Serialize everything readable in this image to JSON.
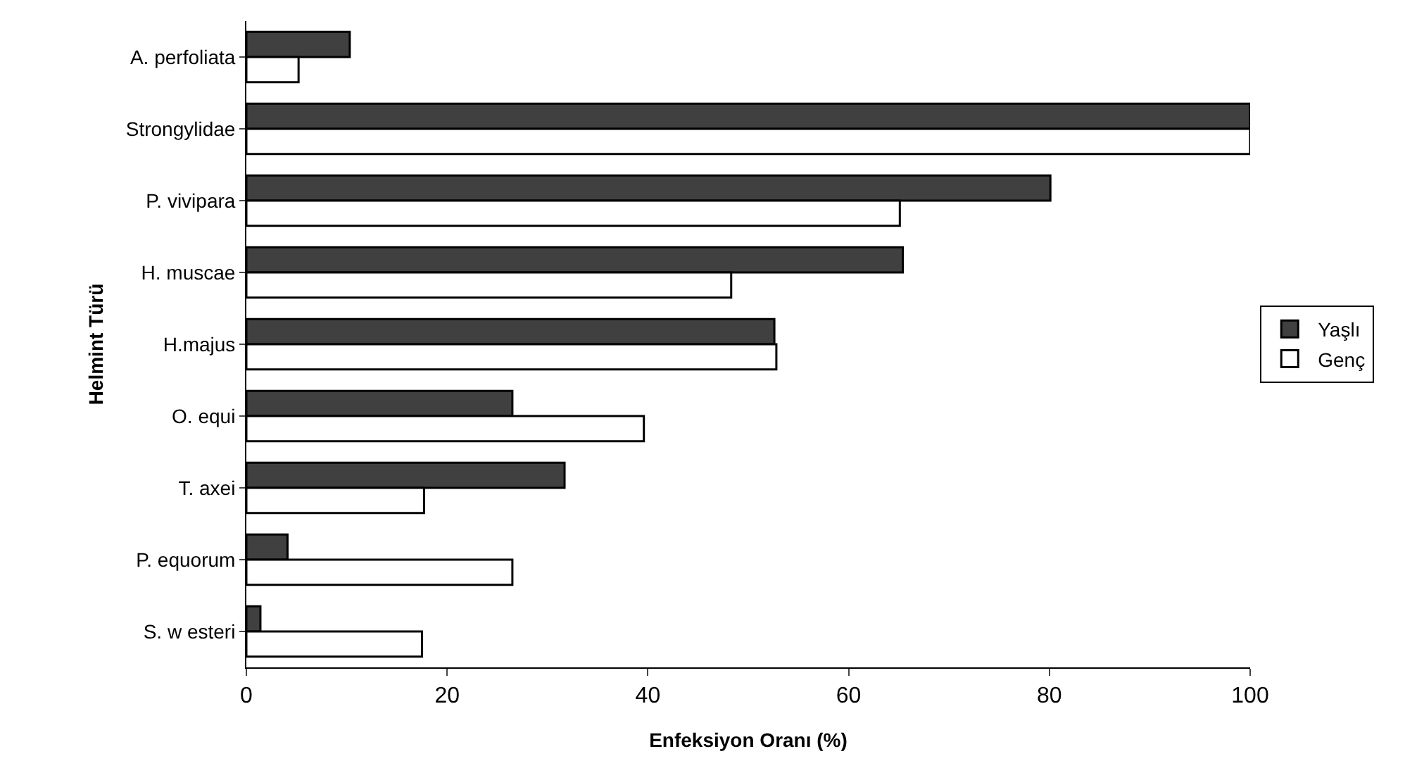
{
  "chart_data": {
    "type": "bar",
    "orientation": "horizontal",
    "xlabel": "Enfeksiyon Oranı (%)",
    "ylabel": "Helmint Türü",
    "categories": [
      "A. perfoliata",
      "Strongylidae",
      "P. vivipara",
      "H. muscae",
      "H.majus",
      "O. equi",
      "T. axei",
      "P. equorum",
      "S. w esteri"
    ],
    "series": [
      {
        "name": "Yaşlı",
        "color": "#404040",
        "values": [
          10.3,
          100,
          80.1,
          65.4,
          52.6,
          26.5,
          31.7,
          4.1,
          1.4
        ]
      },
      {
        "name": "Genç",
        "color": "#ffffff",
        "values": [
          5.2,
          100,
          65.1,
          48.3,
          52.8,
          39.6,
          17.7,
          26.5,
          17.5
        ]
      }
    ],
    "xlim": [
      0,
      100
    ],
    "xticks": [
      0,
      20,
      40,
      60,
      80,
      100
    ],
    "grid": false,
    "legend": "right"
  }
}
